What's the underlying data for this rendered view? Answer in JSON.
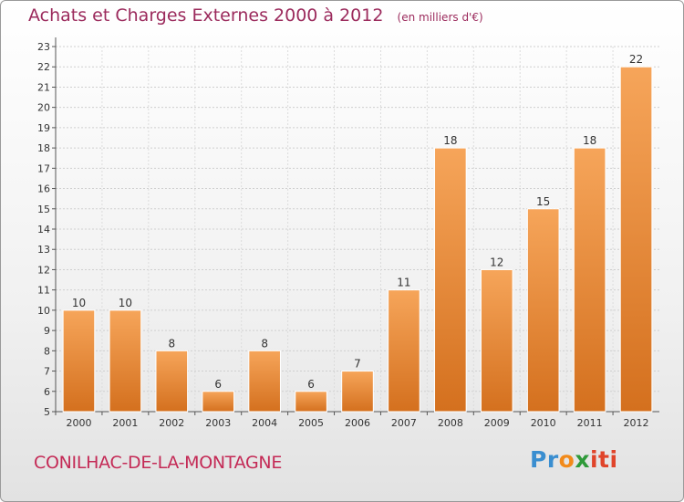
{
  "header": {
    "title": "Achats et Charges Externes 2000 à 2012",
    "subtitle": "(en milliers d'€)"
  },
  "footer": {
    "commune": "CONILHAC-DE-LA-MONTAGNE",
    "logo_parts": [
      "Pr",
      "o",
      "x",
      "iti"
    ]
  },
  "colors": {
    "bar_top": "#f6a55a",
    "bar_bottom": "#d4701e",
    "title": "#9b2a5c",
    "commune": "#c42a56"
  },
  "chart_data": {
    "type": "bar",
    "categories": [
      "2000",
      "2001",
      "2002",
      "2003",
      "2004",
      "2005",
      "2006",
      "2007",
      "2008",
      "2009",
      "2010",
      "2011",
      "2012"
    ],
    "values": [
      10,
      10,
      8,
      6,
      8,
      6,
      7,
      11,
      18,
      12,
      15,
      18,
      22
    ],
    "title": "Achats et Charges Externes 2000 à 2012",
    "subtitle": "(en milliers d'€)",
    "ylim": [
      5,
      23
    ],
    "yticks": [
      5,
      6,
      7,
      8,
      9,
      10,
      11,
      12,
      13,
      14,
      15,
      16,
      17,
      18,
      19,
      20,
      21,
      22,
      23
    ],
    "grid": true,
    "data_labels": true
  }
}
